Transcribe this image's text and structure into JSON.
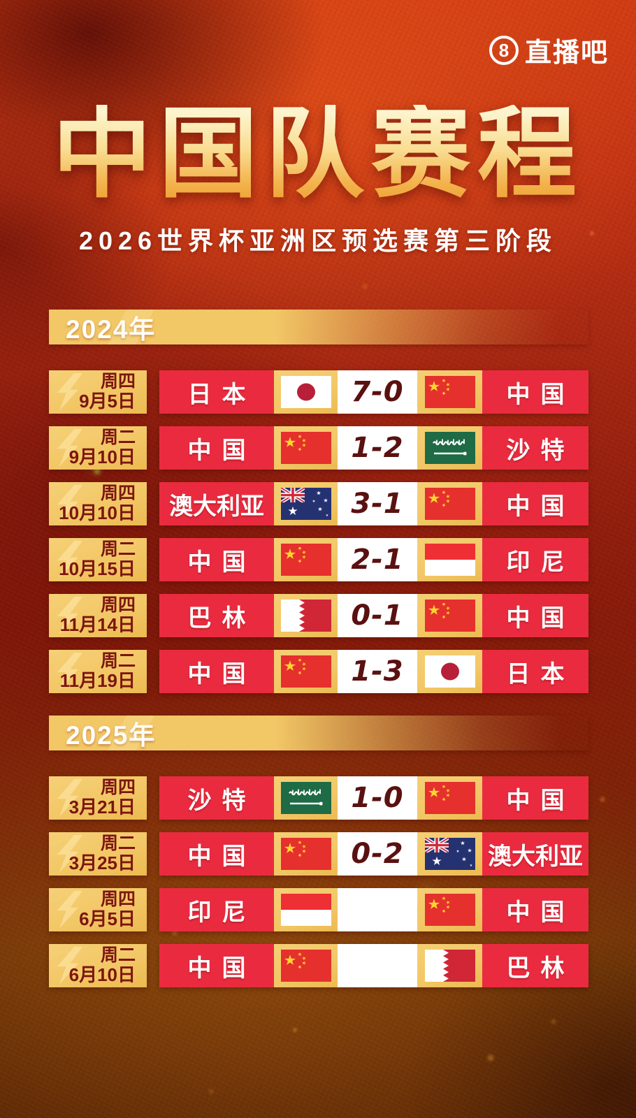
{
  "logo": {
    "number": "8",
    "text": "直播吧"
  },
  "title": {
    "main": "中国队赛程",
    "subtitle": "2026世界杯亚洲区预选赛第三阶段"
  },
  "colors": {
    "gold": "#f2c766",
    "cell_red": "#ea2b3f",
    "date_text": "#7c150f",
    "score_text": "#5a1110",
    "background_red": "#a92811",
    "title_gold_top": "#fdf4cd",
    "title_gold_bottom": "#ef9f33"
  },
  "sections": [
    {
      "year": "2024年",
      "matches": [
        {
          "weekday": "周四",
          "date": "9月5日",
          "home": "日本",
          "home_flag": "japan",
          "score": "7-0",
          "away_flag": "china",
          "away": "中国"
        },
        {
          "weekday": "周二",
          "date": "9月10日",
          "home": "中国",
          "home_flag": "china",
          "score": "1-2",
          "away_flag": "saudi",
          "away": "沙特"
        },
        {
          "weekday": "周四",
          "date": "10月10日",
          "home": "澳大利亚",
          "home_flag": "australia",
          "score": "3-1",
          "away_flag": "china",
          "away": "中国"
        },
        {
          "weekday": "周二",
          "date": "10月15日",
          "home": "中国",
          "home_flag": "china",
          "score": "2-1",
          "away_flag": "indonesia",
          "away": "印尼"
        },
        {
          "weekday": "周四",
          "date": "11月14日",
          "home": "巴林",
          "home_flag": "bahrain",
          "score": "0-1",
          "away_flag": "china",
          "away": "中国"
        },
        {
          "weekday": "周二",
          "date": "11月19日",
          "home": "中国",
          "home_flag": "china",
          "score": "1-3",
          "away_flag": "japan",
          "away": "日本"
        }
      ]
    },
    {
      "year": "2025年",
      "matches": [
        {
          "weekday": "周四",
          "date": "3月21日",
          "home": "沙特",
          "home_flag": "saudi",
          "score": "1-0",
          "away_flag": "china",
          "away": "中国"
        },
        {
          "weekday": "周二",
          "date": "3月25日",
          "home": "中国",
          "home_flag": "china",
          "score": "0-2",
          "away_flag": "australia",
          "away": "澳大利亚"
        },
        {
          "weekday": "周四",
          "date": "6月5日",
          "home": "印尼",
          "home_flag": "indonesia",
          "score": "",
          "away_flag": "china",
          "away": "中国"
        },
        {
          "weekday": "周二",
          "date": "6月10日",
          "home": "中国",
          "home_flag": "china",
          "score": "",
          "away_flag": "bahrain",
          "away": "巴林"
        }
      ]
    }
  ]
}
